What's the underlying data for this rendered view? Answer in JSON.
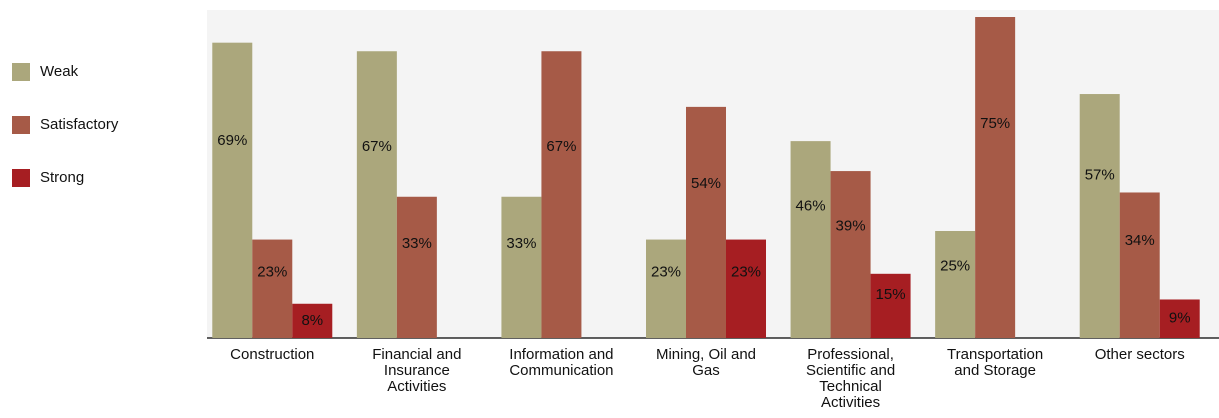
{
  "chart_data": {
    "type": "bar",
    "categories": [
      "Construction",
      "Financial and Insurance Activities",
      "Information and Communication",
      "Mining, Oil and Gas",
      "Professional, Scientific and Technical Activities",
      "Transportation and Storage",
      "Other sectors"
    ],
    "series": [
      {
        "name": "Weak",
        "color": "#aba77c",
        "values": [
          69,
          67,
          33,
          23,
          46,
          25,
          57
        ],
        "value_labels": [
          "69%",
          "67%",
          "33%",
          "23%",
          "46%",
          "25%",
          "57%"
        ]
      },
      {
        "name": "Satisfactory",
        "color": "#a65a47",
        "values": [
          23,
          33,
          67,
          54,
          39,
          75,
          34
        ],
        "value_labels": [
          "23%",
          "33%",
          "67%",
          "54%",
          "39%",
          "75%",
          "34%"
        ]
      },
      {
        "name": "Strong",
        "color": "#a61e22",
        "values": [
          8,
          null,
          null,
          23,
          15,
          null,
          9
        ],
        "value_labels": [
          "8%",
          null,
          null,
          "23%",
          "15%",
          null,
          "9%"
        ]
      }
    ],
    "legend": "left"
  }
}
